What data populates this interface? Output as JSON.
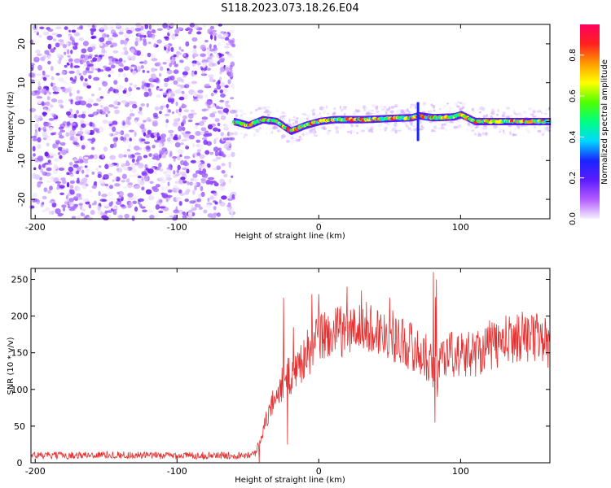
{
  "title": "S118.2023.073.18.26.E04",
  "colors": {
    "spectrogram_dot": "#7b2cf0",
    "snr_line": "#e53030",
    "colorbar": [
      "#f5f0ff",
      "#b35cff",
      "#5a1cff",
      "#1a24ff",
      "#00d8ff",
      "#00ff80",
      "#50ff00",
      "#ffff00",
      "#ff9900",
      "#ff2020",
      "#ff0060"
    ]
  },
  "chart_data": [
    {
      "type": "heatmap",
      "title": "",
      "xlabel": "Height of straight line (km)",
      "ylabel": "Frequency (Hz)",
      "xlim": [
        -203,
        163
      ],
      "ylim": [
        -25,
        25
      ],
      "xticks": [
        -200,
        -100,
        0,
        100
      ],
      "yticks": [
        -20,
        -10,
        0,
        10,
        20
      ],
      "noise_region_x": [
        -203,
        -60
      ],
      "signal_band_center_hz": [
        [
          -60,
          0.0
        ],
        [
          -50,
          -1.0
        ],
        [
          -40,
          0.5
        ],
        [
          -30,
          0.0
        ],
        [
          -20,
          -2.5
        ],
        [
          -10,
          -1.0
        ],
        [
          0,
          0.0
        ],
        [
          10,
          0.5
        ],
        [
          30,
          0.5
        ],
        [
          50,
          0.8
        ],
        [
          65,
          1.0
        ],
        [
          70,
          1.5
        ],
        [
          80,
          1.0
        ],
        [
          95,
          1.2
        ],
        [
          100,
          1.8
        ],
        [
          110,
          0.0
        ],
        [
          120,
          0.0
        ],
        [
          140,
          0.0
        ],
        [
          160,
          0.0
        ]
      ],
      "colorbar": {
        "label": "Normalized spectral amplitude",
        "ticks": [
          "0.0",
          "0.2",
          "0.4",
          "0.6",
          "0.8"
        ],
        "range": [
          0,
          0.95
        ]
      }
    },
    {
      "type": "line",
      "title": "",
      "xlabel": "Height of straight line (km)",
      "ylabel": "SNR (10 * v/v)",
      "xlim": [
        -203,
        163
      ],
      "ylim": [
        0,
        265
      ],
      "xticks": [
        -200,
        -100,
        0,
        100
      ],
      "yticks": [
        0,
        50,
        100,
        150,
        200,
        250
      ],
      "series": [
        {
          "x": [
            -203,
            -180,
            -150,
            -120,
            -90,
            -60,
            -45,
            -40,
            -35,
            -30,
            -25,
            -22,
            -20,
            -15,
            -10,
            -5,
            0,
            5,
            10,
            15,
            20,
            25,
            30,
            35,
            40,
            45,
            50,
            55,
            60,
            65,
            70,
            75,
            80,
            81,
            82,
            83,
            85,
            90,
            95,
            100,
            105,
            110,
            115,
            120,
            125,
            130,
            135,
            140,
            145,
            150,
            155,
            160,
            163
          ],
          "values": [
            10,
            10,
            11,
            10,
            10,
            10,
            12,
            40,
            70,
            95,
            110,
            120,
            115,
            130,
            145,
            155,
            170,
            175,
            175,
            180,
            178,
            182,
            185,
            185,
            180,
            178,
            175,
            170,
            165,
            160,
            150,
            145,
            140,
            55,
            260,
            90,
            145,
            150,
            148,
            145,
            148,
            150,
            155,
            160,
            160,
            165,
            168,
            172,
            175,
            170,
            172,
            168,
            150
          ]
        }
      ],
      "spikes": [
        [
          -42,
          0
        ],
        [
          -25,
          225
        ],
        [
          -22,
          25
        ],
        [
          -18,
          185
        ],
        [
          -5,
          230
        ],
        [
          0,
          230
        ],
        [
          20,
          240
        ],
        [
          30,
          235
        ],
        [
          50,
          225
        ],
        [
          81,
          260
        ],
        [
          82,
          55
        ],
        [
          83,
          250
        ]
      ]
    }
  ]
}
